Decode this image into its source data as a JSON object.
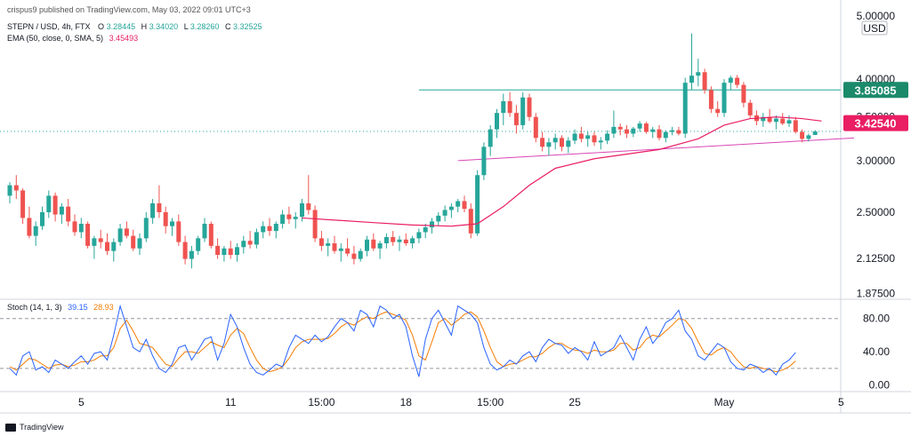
{
  "header": {
    "credit": "crispus9 published on TradingView.com, May 03, 2022 09:01 UTC+3",
    "symbol_line": "STEPN / USD, 4h, FTX",
    "ohlc": [
      {
        "key": "O",
        "value": "3.28445"
      },
      {
        "key": "H",
        "value": "3.34020"
      },
      {
        "key": "L",
        "value": "3.28260"
      },
      {
        "key": "C",
        "value": "3.32525"
      }
    ],
    "ema_label": "EMA (50, close, 0, SMA, 5)",
    "ema_value": "3.45493",
    "stoch_label": "Stoch (14, 1, 3)",
    "stoch_k_value": "39.15",
    "stoch_d_value": "28.93"
  },
  "footer": {
    "brand": "TradingView"
  },
  "colors": {
    "up": "#26a69a",
    "down": "#ef5350",
    "ema": "#e91e63",
    "resistance": "#26a69a",
    "support": "#d946b5",
    "stoch_k": "#2962ff",
    "stoch_d": "#f57c00",
    "price_badge_resistance": "#1b8a6b",
    "price_badge_current": "#e91e63"
  },
  "chart_data": [
    {
      "type": "candlestick",
      "title": "STEPN / USD, 4h, FTX",
      "currency": "USD",
      "y_axis_ticks": [
        "5.00000",
        "4.00000",
        "3.50000",
        "3.00000",
        "2.50000",
        "2.12500",
        "1.87500"
      ],
      "x_axis_ticks": [
        "5",
        "11",
        "15:00",
        "18",
        "15:00",
        "25",
        "May",
        "5"
      ],
      "ylim": [
        1.85,
        5.0
      ],
      "scale": "log",
      "price_labels": [
        {
          "name": "resistance",
          "value": "3.85085"
        },
        {
          "name": "current",
          "value": "3.42540"
        }
      ],
      "candles": [
        [
          2.65,
          2.78,
          2.58,
          2.75
        ],
        [
          2.75,
          2.85,
          2.62,
          2.7
        ],
        [
          2.7,
          2.72,
          2.4,
          2.45
        ],
        [
          2.45,
          2.55,
          2.28,
          2.3
        ],
        [
          2.3,
          2.42,
          2.22,
          2.38
        ],
        [
          2.38,
          2.55,
          2.35,
          2.5
        ],
        [
          2.5,
          2.7,
          2.45,
          2.65
        ],
        [
          2.65,
          2.68,
          2.42,
          2.48
        ],
        [
          2.48,
          2.58,
          2.4,
          2.55
        ],
        [
          2.55,
          2.62,
          2.38,
          2.42
        ],
        [
          2.42,
          2.48,
          2.3,
          2.33
        ],
        [
          2.33,
          2.45,
          2.28,
          2.4
        ],
        [
          2.4,
          2.42,
          2.2,
          2.22
        ],
        [
          2.22,
          2.3,
          2.12,
          2.28
        ],
        [
          2.28,
          2.35,
          2.2,
          2.25
        ],
        [
          2.25,
          2.32,
          2.15,
          2.18
        ],
        [
          2.18,
          2.28,
          2.1,
          2.25
        ],
        [
          2.25,
          2.4,
          2.22,
          2.36
        ],
        [
          2.36,
          2.42,
          2.28,
          2.3
        ],
        [
          2.3,
          2.35,
          2.18,
          2.2
        ],
        [
          2.2,
          2.32,
          2.15,
          2.28
        ],
        [
          2.28,
          2.5,
          2.25,
          2.45
        ],
        [
          2.45,
          2.62,
          2.4,
          2.58
        ],
        [
          2.58,
          2.75,
          2.45,
          2.5
        ],
        [
          2.5,
          2.55,
          2.32,
          2.38
        ],
        [
          2.38,
          2.45,
          2.3,
          2.42
        ],
        [
          2.42,
          2.48,
          2.22,
          2.25
        ],
        [
          2.25,
          2.3,
          2.08,
          2.12
        ],
        [
          2.12,
          2.22,
          2.05,
          2.18
        ],
        [
          2.18,
          2.3,
          2.15,
          2.28
        ],
        [
          2.28,
          2.45,
          2.25,
          2.4
        ],
        [
          2.4,
          2.42,
          2.2,
          2.22
        ],
        [
          2.22,
          2.28,
          2.12,
          2.15
        ],
        [
          2.15,
          2.22,
          2.1,
          2.2
        ],
        [
          2.2,
          2.26,
          2.12,
          2.15
        ],
        [
          2.15,
          2.24,
          2.1,
          2.21
        ],
        [
          2.21,
          2.3,
          2.16,
          2.26
        ],
        [
          2.26,
          2.34,
          2.2,
          2.23
        ],
        [
          2.23,
          2.36,
          2.2,
          2.33
        ],
        [
          2.33,
          2.42,
          2.28,
          2.38
        ],
        [
          2.38,
          2.45,
          2.3,
          2.34
        ],
        [
          2.34,
          2.42,
          2.28,
          2.4
        ],
        [
          2.4,
          2.52,
          2.36,
          2.48
        ],
        [
          2.48,
          2.55,
          2.4,
          2.44
        ],
        [
          2.44,
          2.5,
          2.36,
          2.46
        ],
        [
          2.46,
          2.62,
          2.42,
          2.58
        ],
        [
          2.58,
          2.85,
          2.48,
          2.52
        ],
        [
          2.52,
          2.56,
          2.25,
          2.28
        ],
        [
          2.28,
          2.34,
          2.18,
          2.22
        ],
        [
          2.22,
          2.28,
          2.14,
          2.24
        ],
        [
          2.24,
          2.3,
          2.16,
          2.18
        ],
        [
          2.18,
          2.24,
          2.1,
          2.2
        ],
        [
          2.2,
          2.28,
          2.14,
          2.16
        ],
        [
          2.16,
          2.22,
          2.08,
          2.12
        ],
        [
          2.12,
          2.2,
          2.1,
          2.18
        ],
        [
          2.18,
          2.3,
          2.14,
          2.27
        ],
        [
          2.27,
          2.32,
          2.18,
          2.2
        ],
        [
          2.2,
          2.26,
          2.12,
          2.24
        ],
        [
          2.24,
          2.32,
          2.2,
          2.29
        ],
        [
          2.29,
          2.34,
          2.22,
          2.25
        ],
        [
          2.25,
          2.3,
          2.18,
          2.27
        ],
        [
          2.27,
          2.32,
          2.22,
          2.24
        ],
        [
          2.24,
          2.3,
          2.2,
          2.28
        ],
        [
          2.28,
          2.36,
          2.24,
          2.33
        ],
        [
          2.33,
          2.4,
          2.28,
          2.37
        ],
        [
          2.37,
          2.45,
          2.32,
          2.42
        ],
        [
          2.42,
          2.5,
          2.38,
          2.47
        ],
        [
          2.47,
          2.56,
          2.42,
          2.52
        ],
        [
          2.52,
          2.58,
          2.45,
          2.55
        ],
        [
          2.55,
          2.62,
          2.5,
          2.6
        ],
        [
          2.6,
          2.65,
          2.5,
          2.53
        ],
        [
          2.53,
          2.58,
          2.28,
          2.32
        ],
        [
          2.32,
          2.9,
          2.3,
          2.85
        ],
        [
          2.85,
          3.2,
          2.8,
          3.15
        ],
        [
          3.15,
          3.4,
          3.05,
          3.35
        ],
        [
          3.35,
          3.6,
          3.25,
          3.55
        ],
        [
          3.55,
          3.8,
          3.4,
          3.7
        ],
        [
          3.7,
          3.82,
          3.5,
          3.55
        ],
        [
          3.55,
          3.65,
          3.3,
          3.4
        ],
        [
          3.4,
          3.82,
          3.35,
          3.75
        ],
        [
          3.75,
          3.8,
          3.45,
          3.5
        ],
        [
          3.5,
          3.55,
          3.2,
          3.25
        ],
        [
          3.25,
          3.32,
          3.1,
          3.15
        ],
        [
          3.15,
          3.25,
          3.05,
          3.2
        ],
        [
          3.2,
          3.3,
          3.12,
          3.25
        ],
        [
          3.25,
          3.28,
          3.1,
          3.15
        ],
        [
          3.15,
          3.26,
          3.08,
          3.22
        ],
        [
          3.22,
          3.35,
          3.18,
          3.3
        ],
        [
          3.3,
          3.38,
          3.2,
          3.24
        ],
        [
          3.24,
          3.32,
          3.15,
          3.28
        ],
        [
          3.28,
          3.32,
          3.16,
          3.2
        ],
        [
          3.2,
          3.26,
          3.12,
          3.22
        ],
        [
          3.22,
          3.34,
          3.18,
          3.3
        ],
        [
          3.3,
          3.58,
          3.25,
          3.38
        ],
        [
          3.38,
          3.42,
          3.28,
          3.35
        ],
        [
          3.35,
          3.4,
          3.25,
          3.3
        ],
        [
          3.3,
          3.38,
          3.26,
          3.36
        ],
        [
          3.36,
          3.45,
          3.32,
          3.42
        ],
        [
          3.42,
          3.44,
          3.3,
          3.32
        ],
        [
          3.32,
          3.38,
          3.25,
          3.35
        ],
        [
          3.35,
          3.4,
          3.22,
          3.25
        ],
        [
          3.25,
          3.34,
          3.2,
          3.32
        ],
        [
          3.32,
          3.38,
          3.28,
          3.34
        ],
        [
          3.34,
          3.38,
          3.28,
          3.3
        ],
        [
          3.3,
          4.02,
          3.25,
          3.95
        ],
        [
          3.95,
          4.7,
          3.85,
          4.05
        ],
        [
          4.05,
          4.3,
          3.9,
          4.1
        ],
        [
          4.1,
          4.15,
          3.8,
          3.85
        ],
        [
          3.85,
          3.9,
          3.55,
          3.6
        ],
        [
          3.6,
          3.7,
          3.5,
          3.55
        ],
        [
          3.55,
          4.0,
          3.5,
          3.95
        ],
        [
          3.95,
          4.05,
          3.85,
          4.02
        ],
        [
          4.02,
          4.06,
          3.88,
          3.92
        ],
        [
          3.92,
          3.96,
          3.62,
          3.68
        ],
        [
          3.68,
          3.72,
          3.48,
          3.52
        ],
        [
          3.52,
          3.58,
          3.4,
          3.45
        ],
        [
          3.45,
          3.55,
          3.38,
          3.5
        ],
        [
          3.5,
          3.6,
          3.42,
          3.44
        ],
        [
          3.44,
          3.52,
          3.35,
          3.48
        ],
        [
          3.48,
          3.55,
          3.4,
          3.42
        ],
        [
          3.42,
          3.52,
          3.38,
          3.46
        ],
        [
          3.46,
          3.5,
          3.3,
          3.32
        ],
        [
          3.32,
          3.35,
          3.2,
          3.24
        ],
        [
          3.24,
          3.3,
          3.21,
          3.28
        ],
        [
          3.28445,
          3.3402,
          3.2826,
          3.32525
        ]
      ],
      "ema": {
        "name": "EMA (50, close, 0, SMA, 5)",
        "points": [
          [
            45,
            2.45
          ],
          [
            56,
            2.41
          ],
          [
            62,
            2.39
          ],
          [
            68,
            2.38
          ],
          [
            72,
            2.4
          ],
          [
            76,
            2.55
          ],
          [
            80,
            2.75
          ],
          [
            84,
            2.92
          ],
          [
            90,
            3.02
          ],
          [
            100,
            3.12
          ],
          [
            106,
            3.24
          ],
          [
            110,
            3.4
          ],
          [
            114,
            3.48
          ],
          [
            118,
            3.5
          ],
          [
            122,
            3.48
          ],
          [
            125,
            3.45
          ]
        ]
      },
      "resistance_level": 3.85085,
      "support_line": {
        "from": [
          69,
          3.0
        ],
        "to": [
          130,
          3.25
        ]
      }
    },
    {
      "type": "line",
      "title": "Stoch (14, 1, 3)",
      "y_axis_ticks": [
        "80.00",
        "40.00",
        "0.00"
      ],
      "ylim": [
        -8,
        100
      ],
      "guide_levels": [
        80,
        20
      ],
      "series": [
        {
          "name": "%K",
          "values": [
            20,
            12,
            35,
            40,
            18,
            22,
            15,
            30,
            25,
            20,
            28,
            35,
            25,
            38,
            40,
            30,
            60,
            95,
            70,
            45,
            40,
            55,
            35,
            20,
            15,
            25,
            45,
            48,
            30,
            42,
            55,
            58,
            30,
            50,
            85,
            70,
            45,
            25,
            15,
            12,
            18,
            25,
            22,
            45,
            60,
            55,
            50,
            60,
            52,
            58,
            70,
            80,
            75,
            65,
            90,
            85,
            70,
            95,
            90,
            80,
            85,
            70,
            35,
            10,
            55,
            80,
            90,
            75,
            60,
            95,
            90,
            85,
            75,
            45,
            25,
            18,
            22,
            30,
            25,
            35,
            40,
            28,
            45,
            55,
            50,
            48,
            38,
            45,
            40,
            30,
            52,
            35,
            40,
            45,
            60,
            45,
            30,
            55,
            70,
            50,
            60,
            75,
            80,
            90,
            65,
            55,
            35,
            30,
            40,
            50,
            45,
            28,
            20,
            18,
            25,
            22,
            15,
            20,
            12,
            25,
            30,
            39.15
          ]
        },
        {
          "name": "%D",
          "values": [
            22,
            18,
            25,
            32,
            30,
            25,
            20,
            24,
            25,
            22,
            24,
            28,
            28,
            30,
            35,
            35,
            45,
            68,
            78,
            65,
            50,
            48,
            45,
            35,
            25,
            22,
            32,
            40,
            40,
            38,
            45,
            52,
            48,
            45,
            60,
            68,
            62,
            45,
            30,
            20,
            16,
            18,
            22,
            32,
            45,
            52,
            55,
            55,
            55,
            56,
            62,
            70,
            75,
            72,
            78,
            82,
            80,
            85,
            88,
            85,
            82,
            78,
            60,
            35,
            30,
            52,
            75,
            80,
            72,
            78,
            85,
            88,
            82,
            65,
            45,
            28,
            22,
            25,
            26,
            30,
            34,
            34,
            38,
            45,
            50,
            50,
            45,
            42,
            41,
            38,
            42,
            40,
            40,
            42,
            50,
            50,
            42,
            45,
            55,
            60,
            58,
            65,
            72,
            80,
            78,
            68,
            52,
            38,
            36,
            42,
            45,
            40,
            30,
            22,
            20,
            22,
            20,
            18,
            16,
            18,
            22,
            28.93
          ]
        }
      ]
    }
  ]
}
